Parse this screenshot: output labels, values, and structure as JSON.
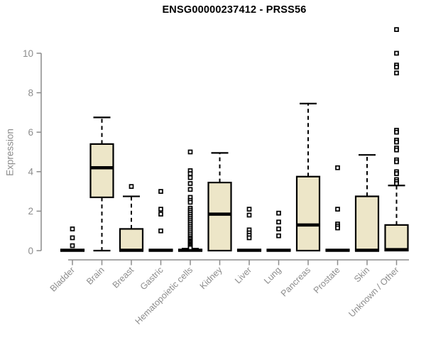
{
  "chart_data": {
    "type": "boxplot",
    "title": "ENSG00000237412 - PRSS56",
    "ylabel": "Expression",
    "xlabel": "",
    "ylim": [
      0,
      11.3
    ],
    "yticks": [
      0,
      2,
      4,
      6,
      8,
      10
    ],
    "grid": false,
    "legend": "none",
    "categories": [
      "Bladder",
      "Brain",
      "Breast",
      "Gastric",
      "Hematopoietic cells",
      "Kidney",
      "Liver",
      "Lung",
      "Pancreas",
      "Prostate",
      "Skin",
      "Unknown / Other"
    ],
    "series": [
      {
        "label": "Bladder",
        "whisker_low": 0,
        "q1": 0,
        "median": 0.02,
        "q3": 0.05,
        "whisker_high": 0.05,
        "outliers": [
          1.1,
          0.65,
          0.25
        ]
      },
      {
        "label": "Brain",
        "whisker_low": 0,
        "q1": 2.7,
        "median": 4.2,
        "q3": 5.4,
        "whisker_high": 6.75,
        "outliers": []
      },
      {
        "label": "Breast",
        "whisker_low": 0,
        "q1": 0,
        "median": 0.02,
        "q3": 1.1,
        "whisker_high": 2.75,
        "outliers": [
          3.25
        ]
      },
      {
        "label": "Gastric",
        "whisker_low": 0,
        "q1": 0,
        "median": 0.02,
        "q3": 0.05,
        "whisker_high": 0.05,
        "outliers": [
          3.0,
          2.1,
          1.85,
          1.0
        ]
      },
      {
        "label": "Hematopoietic cells",
        "whisker_low": 0,
        "q1": 0,
        "median": 0.02,
        "q3": 0.05,
        "whisker_high": 0.1,
        "outliers": [
          5.0,
          4.05,
          3.9,
          3.7,
          3.4,
          3.1,
          2.7,
          2.55,
          2.45,
          2.15,
          2.05,
          1.95,
          1.85,
          1.75,
          1.65,
          1.55,
          1.45,
          1.35,
          1.25,
          1.15,
          1.05,
          0.95,
          0.85,
          0.75,
          0.65,
          0.58,
          0.5,
          0.44,
          0.38,
          0.32,
          0.26,
          0.2,
          0.14
        ]
      },
      {
        "label": "Kidney",
        "whisker_low": 0,
        "q1": 0,
        "median": 1.85,
        "q3": 3.45,
        "whisker_high": 4.95,
        "outliers": []
      },
      {
        "label": "Liver",
        "whisker_low": 0,
        "q1": 0,
        "median": 0.02,
        "q3": 0.05,
        "whisker_high": 0.05,
        "outliers": [
          2.1,
          1.8,
          1.05,
          0.9,
          0.78,
          0.65
        ]
      },
      {
        "label": "Lung",
        "whisker_low": 0,
        "q1": 0,
        "median": 0.02,
        "q3": 0.05,
        "whisker_high": 0.05,
        "outliers": [
          1.9,
          1.45,
          1.1,
          0.75
        ]
      },
      {
        "label": "Pancreas",
        "whisker_low": 0,
        "q1": 0,
        "median": 1.3,
        "q3": 3.75,
        "whisker_high": 7.45,
        "outliers": []
      },
      {
        "label": "Prostate",
        "whisker_low": 0,
        "q1": 0,
        "median": 0.02,
        "q3": 0.05,
        "whisker_high": 0.05,
        "outliers": [
          4.2,
          2.1,
          1.35,
          1.25,
          1.15
        ]
      },
      {
        "label": "Skin",
        "whisker_low": 0,
        "q1": 0,
        "median": 0.02,
        "q3": 2.75,
        "whisker_high": 4.85,
        "outliers": []
      },
      {
        "label": "Unknown / Other",
        "whisker_low": 0,
        "q1": 0,
        "median": 0.05,
        "q3": 1.3,
        "whisker_high": 3.3,
        "outliers": [
          11.2,
          10.0,
          9.4,
          9.3,
          9.0,
          6.1,
          6.0,
          5.6,
          5.5,
          5.2,
          5.1,
          4.6,
          4.5,
          4.0,
          3.9,
          3.6,
          3.5,
          3.4
        ]
      }
    ]
  },
  "colors": {
    "box_fill": "#EDE6C8",
    "box_stroke": "#000000",
    "median": "#000000",
    "outlier_stroke": "#000000",
    "outlier_fill": "#FFFFFF",
    "axis": "#8C8C8C",
    "title": "#000000",
    "background": "#FFFFFF"
  }
}
